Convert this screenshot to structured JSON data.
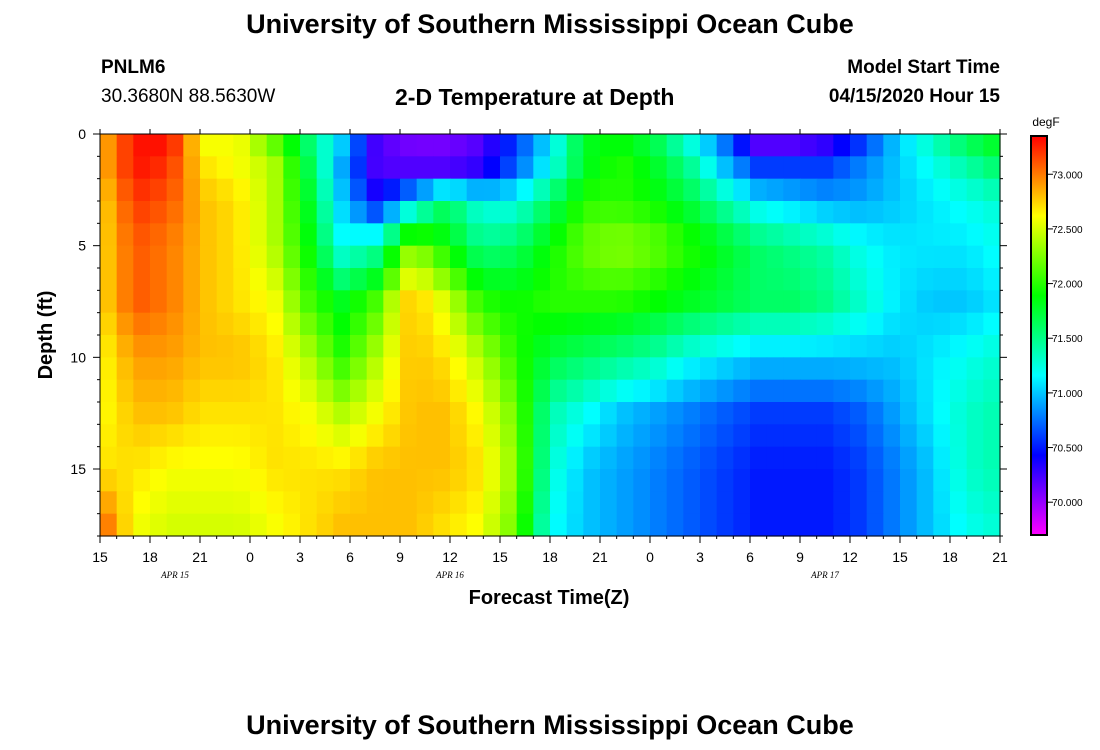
{
  "header": {
    "title_top": "University of Southern Mississippi Ocean Cube",
    "station": "PNLM6",
    "coords": "30.3680N 88.5630W",
    "plot_title": "2-D Temperature at Depth",
    "model_start_label": "Model Start Time",
    "model_start_value": "04/15/2020 Hour 15"
  },
  "footer": {
    "title_bottom": "University of Southern Mississippi Ocean Cube"
  },
  "chart_data": {
    "type": "heatmap",
    "title": "2-D Temperature at Depth",
    "xlabel": "Forecast Time(Z)",
    "ylabel": "Depth (ft)",
    "x_tick_labels": [
      "15",
      "18",
      "21",
      "0",
      "3",
      "6",
      "9",
      "12",
      "15",
      "18",
      "21",
      "0",
      "3",
      "6",
      "9",
      "12",
      "15",
      "18",
      "21"
    ],
    "x_range_hours": [
      0,
      54
    ],
    "date_labels": [
      {
        "text": "APR 15",
        "hour": 4.5
      },
      {
        "text": "APR 16",
        "hour": 21
      },
      {
        "text": "APR 17",
        "hour": 43.5
      }
    ],
    "y_ticks": [
      0,
      5,
      10,
      15
    ],
    "ylim": [
      0,
      18
    ],
    "y_inverted": true,
    "colorbar": {
      "unit": "degF",
      "min": 69.7,
      "max": 73.35,
      "ticks": [
        "70.000",
        "70.500",
        "71.000",
        "71.500",
        "72.000",
        "72.500",
        "73.000"
      ],
      "tick_values": [
        70.0,
        70.5,
        71.0,
        71.5,
        72.0,
        72.5,
        73.0
      ]
    },
    "z_rows": [
      {
        "depth": 0.5,
        "values": [
          72.8,
          73.3,
          73.3,
          72.6,
          72.6,
          72.2,
          71.6,
          71.0,
          70.2,
          70.1,
          70.1,
          70.2,
          70.6,
          71.1,
          71.8,
          71.9,
          71.7,
          71.3,
          70.8,
          70.2,
          70.2,
          70.3,
          70.6,
          71.0,
          71.3,
          71.6,
          71.8
        ]
      },
      {
        "depth": 1.5,
        "values": [
          72.8,
          73.3,
          73.2,
          72.7,
          72.6,
          72.4,
          71.7,
          70.9,
          70.2,
          70.2,
          70.2,
          70.3,
          70.7,
          71.2,
          71.8,
          72.0,
          71.8,
          71.5,
          71.0,
          70.6,
          70.6,
          70.6,
          70.8,
          71.0,
          71.2,
          71.4,
          71.6
        ]
      },
      {
        "depth": 3.0,
        "values": [
          72.7,
          73.2,
          73.1,
          72.8,
          72.7,
          72.4,
          71.8,
          71.0,
          70.4,
          71.0,
          71.6,
          71.2,
          71.2,
          71.6,
          72.0,
          72.0,
          71.9,
          71.7,
          71.4,
          71.1,
          71.0,
          70.9,
          70.9,
          71.0,
          71.1,
          71.2,
          71.3
        ]
      },
      {
        "depth": 5.0,
        "values": [
          72.7,
          73.1,
          73.0,
          72.8,
          72.7,
          72.4,
          71.9,
          71.2,
          71.4,
          72.3,
          71.9,
          71.5,
          71.6,
          71.9,
          72.2,
          72.3,
          72.2,
          72.0,
          71.8,
          71.6,
          71.5,
          71.4,
          71.2,
          71.1,
          71.1,
          71.1,
          71.2
        ]
      },
      {
        "depth": 7.5,
        "values": [
          72.7,
          73.1,
          73.0,
          72.8,
          72.7,
          72.6,
          72.1,
          71.8,
          72.1,
          72.8,
          72.5,
          72.0,
          71.9,
          72.0,
          72.0,
          72.0,
          71.9,
          71.8,
          71.7,
          71.6,
          71.6,
          71.5,
          71.3,
          71.1,
          71.0,
          71.0,
          71.1
        ]
      },
      {
        "depth": 10.0,
        "values": [
          72.6,
          72.9,
          72.9,
          72.8,
          72.8,
          72.7,
          72.4,
          72.0,
          72.4,
          72.8,
          72.7,
          72.4,
          72.0,
          71.7,
          71.6,
          71.5,
          71.4,
          71.2,
          71.1,
          71.0,
          71.0,
          71.0,
          71.0,
          71.0,
          71.1,
          71.2,
          71.3
        ]
      },
      {
        "depth": 12.5,
        "values": [
          72.6,
          72.8,
          72.8,
          72.7,
          72.7,
          72.7,
          72.6,
          72.4,
          72.6,
          72.8,
          72.8,
          72.6,
          72.2,
          71.4,
          71.2,
          71.0,
          70.9,
          70.8,
          70.7,
          70.6,
          70.6,
          70.6,
          70.7,
          70.9,
          71.1,
          71.3,
          71.4
        ]
      },
      {
        "depth": 15.0,
        "values": [
          72.7,
          72.7,
          72.6,
          72.6,
          72.6,
          72.7,
          72.7,
          72.7,
          72.8,
          72.8,
          72.8,
          72.7,
          72.3,
          71.3,
          71.0,
          70.9,
          70.8,
          70.7,
          70.6,
          70.5,
          70.5,
          70.5,
          70.6,
          70.8,
          71.0,
          71.3,
          71.4
        ]
      },
      {
        "depth": 17.5,
        "values": [
          73.1,
          72.6,
          72.5,
          72.5,
          72.5,
          72.6,
          72.7,
          72.8,
          72.8,
          72.8,
          72.7,
          72.6,
          72.2,
          71.2,
          71.0,
          70.9,
          70.8,
          70.7,
          70.6,
          70.5,
          70.5,
          70.5,
          70.6,
          70.8,
          71.0,
          71.2,
          71.3
        ]
      }
    ]
  }
}
